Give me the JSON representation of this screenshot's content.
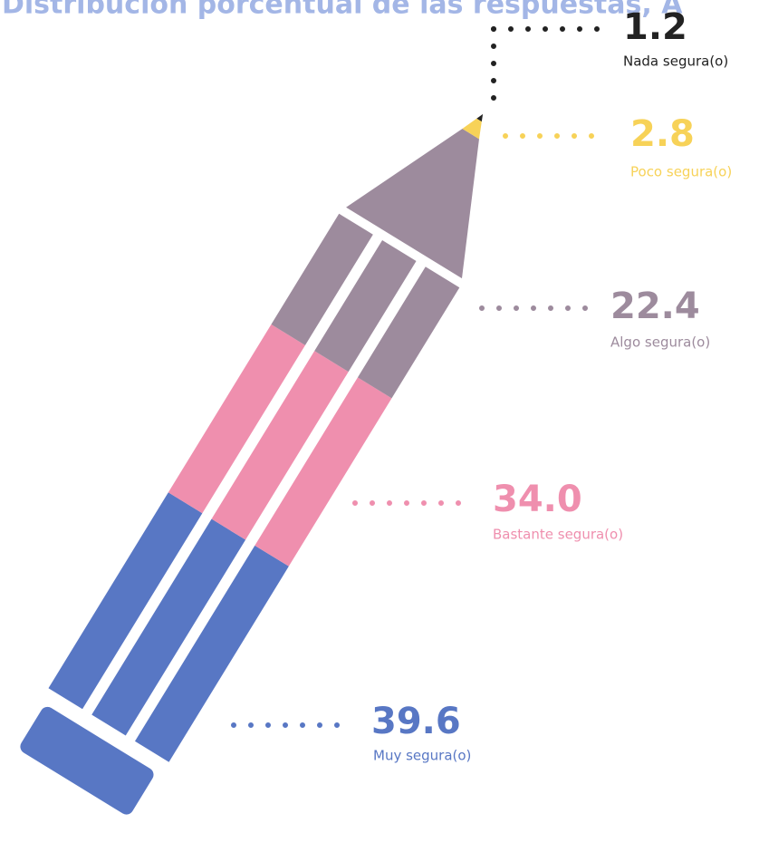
{
  "chart_data": {
    "type": "pencil",
    "title": "Distribución porcentual de las respuestas, A",
    "categories": [
      "Nada segura(o)",
      "Poco segura(o)",
      "Algo segura(o)",
      "Bastante segura(o)",
      "Muy segura(o)"
    ],
    "values": [
      1.2,
      2.8,
      22.4,
      34.0,
      39.6
    ],
    "value_labels": [
      "1.2",
      "2.8",
      "22.4",
      "34.0",
      "39.6"
    ],
    "colors": [
      "#222222",
      "#f7d258",
      "#9d8b9d",
      "#ef8fae",
      "#5877c4"
    ]
  }
}
